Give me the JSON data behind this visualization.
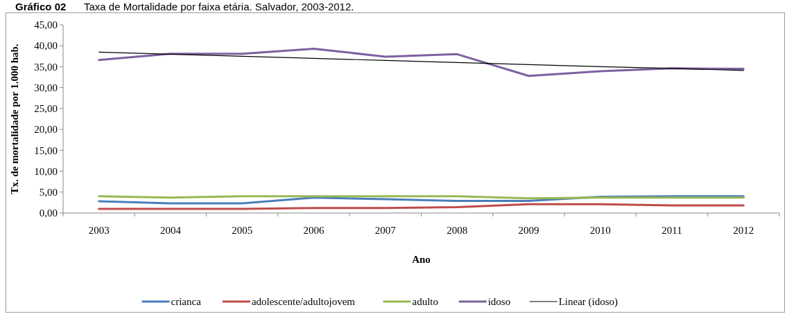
{
  "chart_data": {
    "type": "line",
    "title": "Gráfico 02",
    "subtitle": "Taxa de Mortalidade por faixa etária. Salvador, 2003-2012.",
    "xlabel": "Ano",
    "ylabel": "Tx. de mortalidade por 1.000 hab.",
    "categories": [
      "2003",
      "2004",
      "2005",
      "2006",
      "2007",
      "2008",
      "2009",
      "2010",
      "2011",
      "2012"
    ],
    "series": [
      {
        "name": "crianca",
        "color": "#4a7ebb",
        "values": [
          2.8,
          2.3,
          2.3,
          3.7,
          3.3,
          2.9,
          2.9,
          3.9,
          4.0,
          4.0
        ]
      },
      {
        "name": "adolescente/adultojovem",
        "color": "#be4b48",
        "values": [
          1.0,
          1.0,
          1.0,
          1.2,
          1.2,
          1.4,
          2.1,
          2.1,
          1.8,
          1.8
        ]
      },
      {
        "name": "adulto",
        "color": "#98b954",
        "values": [
          4.0,
          3.7,
          4.0,
          4.0,
          4.0,
          4.0,
          3.5,
          3.7,
          3.7,
          3.7
        ]
      },
      {
        "name": "idoso",
        "color": "#7d60a0",
        "values": [
          36.6,
          38.1,
          38.1,
          39.3,
          37.4,
          38.0,
          32.8,
          33.9,
          34.6,
          34.5
        ]
      },
      {
        "name": "Linear (idoso)",
        "color": "#000000",
        "values": [
          38.5,
          38.0,
          37.5,
          37.0,
          36.5,
          36.0,
          35.5,
          35.0,
          34.6,
          34.1
        ]
      }
    ],
    "ylim": [
      0,
      45
    ],
    "yticks": [
      {
        "value": 0,
        "label": "0,00"
      },
      {
        "value": 5,
        "label": "5,00"
      },
      {
        "value": 10,
        "label": "10,00"
      },
      {
        "value": 15,
        "label": "15,00"
      },
      {
        "value": 20,
        "label": "20,00"
      },
      {
        "value": 25,
        "label": "25,00"
      },
      {
        "value": 30,
        "label": "30,00"
      },
      {
        "value": 35,
        "label": "35,00"
      },
      {
        "value": 40,
        "label": "40,00"
      },
      {
        "value": 45,
        "label": "45,00"
      }
    ],
    "grid": false,
    "legend": "bottom",
    "line_style": "solid"
  }
}
